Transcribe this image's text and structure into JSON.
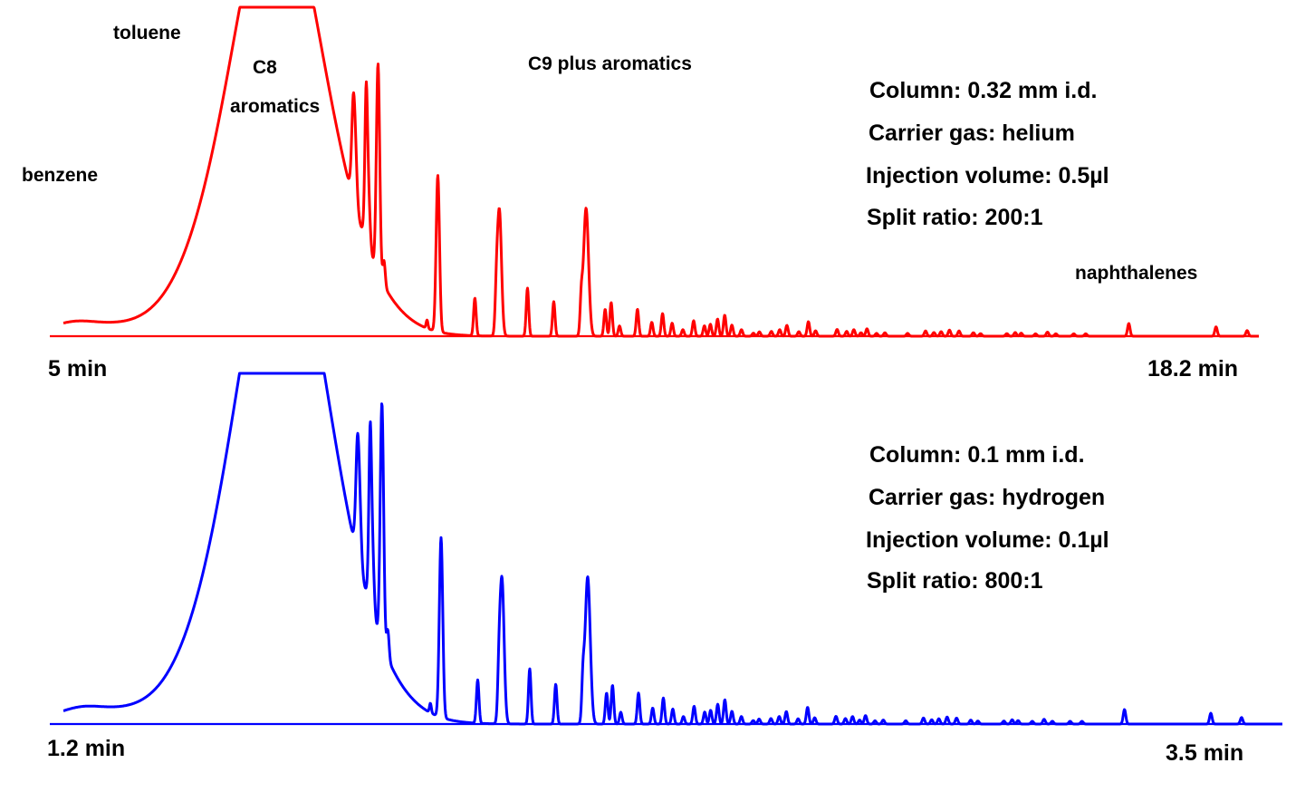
{
  "chart_data": [
    {
      "type": "line",
      "name": "chromatogram-top",
      "color": "#ff0000",
      "x_start_label": "5 min",
      "x_end_label": "18.2 min",
      "x_range": [
        5,
        18.2
      ],
      "annotations": {
        "benzene": "benzene",
        "toluene": "toluene",
        "c8": "C8",
        "c8_aromatics": "aromatics",
        "c9": "C9  plus aromatics",
        "naphthalenes": "naphthalenes"
      },
      "conditions": {
        "column": "Column: 0.32 mm  i.d.",
        "carrier": "Carrier gas: helium",
        "injection": "Injection volume: 0.5µl",
        "split": "Split ratio: 200:1"
      },
      "peaks": [
        [
          0.007,
          0.08,
          0.04
        ],
        [
          0.011,
          0.05,
          0.04
        ],
        [
          0.0124,
          0.33,
          0.09
        ],
        [
          0.02,
          0.13,
          0.1
        ],
        [
          0.05,
          0.15,
          0.12
        ],
        [
          0.121,
          0.28,
          0.1
        ],
        [
          0.172,
          0.4,
          0.1
        ],
        [
          0.1778,
          5.3,
          0.08
        ],
        [
          0.18,
          15.0,
          0.13
        ],
        [
          0.2422,
          0.92,
          0.0028
        ],
        [
          0.2432,
          4.35,
          0.005
        ],
        [
          0.2532,
          4.07,
          0.0028
        ],
        [
          0.2542,
          3.85,
          0.005
        ],
        [
          0.2632,
          9.65,
          0.004
        ],
        [
          0.2682,
          1.13,
          0.003
        ],
        [
          0.3042,
          0.38,
          0.0022
        ],
        [
          0.3132,
          7.19,
          0.004
        ],
        [
          0.3442,
          1.73,
          0.003
        ],
        [
          0.3622,
          1.38,
          0.003
        ],
        [
          0.3647,
          5.79,
          0.005
        ],
        [
          0.3882,
          2.21,
          0.003
        ],
        [
          0.4102,
          1.59,
          0.003
        ],
        [
          0.4332,
          1.45,
          0.0028
        ],
        [
          0.4372,
          5.89,
          0.006
        ],
        [
          0.4532,
          1.24,
          0.003
        ],
        [
          0.4582,
          1.55,
          0.003
        ],
        [
          0.4652,
          0.47,
          0.003
        ],
        [
          0.4802,
          1.24,
          0.003
        ],
        [
          0.4922,
          0.64,
          0.003
        ],
        [
          0.5012,
          1.04,
          0.003
        ],
        [
          0.5092,
          0.6,
          0.003
        ],
        [
          0.5182,
          0.3,
          0.003
        ],
        [
          0.5272,
          0.71,
          0.003
        ],
        [
          0.5362,
          0.48,
          0.003
        ],
        [
          0.5412,
          0.55,
          0.003
        ],
        [
          0.5472,
          0.79,
          0.003
        ],
        [
          0.5532,
          0.97,
          0.003
        ],
        [
          0.5592,
          0.51,
          0.003
        ],
        [
          0.5672,
          0.3,
          0.003
        ],
        [
          0.5772,
          0.14,
          0.003
        ],
        [
          0.5822,
          0.2,
          0.003
        ],
        [
          0.5922,
          0.22,
          0.003
        ],
        [
          0.5992,
          0.3,
          0.003
        ],
        [
          0.6052,
          0.5,
          0.003
        ],
        [
          0.6152,
          0.21,
          0.003
        ],
        [
          0.6232,
          0.67,
          0.003
        ],
        [
          0.6292,
          0.25,
          0.003
        ],
        [
          0.6472,
          0.31,
          0.003
        ],
        [
          0.6552,
          0.22,
          0.003
        ],
        [
          0.6612,
          0.3,
          0.003
        ],
        [
          0.6672,
          0.16,
          0.003
        ],
        [
          0.6722,
          0.34,
          0.003
        ],
        [
          0.6802,
          0.13,
          0.003
        ],
        [
          0.6872,
          0.16,
          0.003
        ],
        [
          0.7062,
          0.13,
          0.003
        ],
        [
          0.7212,
          0.24,
          0.003
        ],
        [
          0.7282,
          0.17,
          0.003
        ],
        [
          0.7342,
          0.21,
          0.003
        ],
        [
          0.7412,
          0.28,
          0.003
        ],
        [
          0.7492,
          0.24,
          0.003
        ],
        [
          0.7612,
          0.16,
          0.003
        ],
        [
          0.7672,
          0.12,
          0.003
        ],
        [
          0.7892,
          0.12,
          0.003
        ],
        [
          0.7962,
          0.17,
          0.003
        ],
        [
          0.8012,
          0.14,
          0.003
        ],
        [
          0.8132,
          0.11,
          0.003
        ],
        [
          0.8232,
          0.19,
          0.003
        ],
        [
          0.8302,
          0.11,
          0.003
        ],
        [
          0.8452,
          0.11,
          0.003
        ],
        [
          0.8552,
          0.11,
          0.003
        ],
        [
          0.8912,
          0.58,
          0.003
        ],
        [
          0.9642,
          0.43,
          0.003
        ],
        [
          0.9902,
          0.26,
          0.003
        ]
      ]
    },
    {
      "type": "line",
      "name": "chromatogram-bottom",
      "color": "#0000ff",
      "x_start_label": "1.2 min",
      "x_end_label": "3.5 min",
      "x_range": [
        1.2,
        3.5
      ],
      "conditions": {
        "column": "Column: 0.1 mm  i.d.",
        "carrier": "Carrier gas: hydrogen",
        "injection": "Injection volume: 0.1µl",
        "split": "Split ratio: 800:1"
      }
    }
  ]
}
